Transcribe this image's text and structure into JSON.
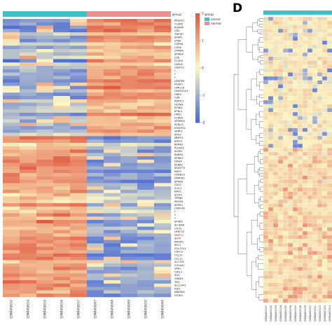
{
  "panel_label": "D",
  "chart_data": [
    {
      "type": "heatmap",
      "title": "",
      "annotation_track": {
        "label": "group",
        "groups": [
          {
            "name": "cancer",
            "color": "#3fc1c9",
            "n": 5
          },
          {
            "name": "normal",
            "color": "#ec8f8f",
            "n": 5
          }
        ]
      },
      "columns": [
        "GSM4450012",
        "GSM4450014",
        "GSM4450015",
        "GSM4450016",
        "GSM4450017",
        "GSM4450007",
        "GSM4450008",
        "GSM4450009",
        "GSM4450010",
        "GSM4450006"
      ],
      "row_labels": [
        "PRSS55",
        "CLDN5",
        "RGMAP",
        "CD5",
        "TMEM7",
        "EPB41",
        "ETB4",
        "CAPN6",
        "CD36",
        "CMKR8",
        "SPINK4",
        "CFD",
        "FCGR3",
        "CAPLN",
        "CASP12",
        "*",
        "*",
        "*",
        "LRRTM4",
        "FIGAF1",
        "GPR116",
        "LINC00153",
        "GRK5",
        "CD6",
        "PDPTC1",
        "HCAR3",
        "EFNB2",
        "BTNL1",
        "ORD1",
        "FCRN3",
        "SERPIN1",
        "KCNJ12",
        "ESRLPS2",
        "SRRP1",
        "MYOC",
        "MMP11",
        "MTFP1",
        "BPIFB1",
        "POLRP2",
        "KLRK1",
        "RAB26",
        "SPINK7",
        "LEKE2",
        "KCNB1",
        "SIGNTT3",
        "MAP5",
        "HOXB13",
        "DMRTA2",
        "EPHN3",
        "CD22",
        "ICOL1",
        "EMX1",
        "SULT2",
        "TPRBK",
        "PROM1",
        "BPIFA1",
        "CADC4A",
        "*",
        "*",
        "*",
        "EPHB3",
        "SLC6A8",
        "CTCFL",
        "LRRC33",
        "MMP13",
        "SLP4",
        "PMAIP1",
        "SPC1",
        "COL11A1",
        "CDH11",
        "CCL20",
        "CCL11",
        "SLC7A5",
        "COL4A1",
        "SAA1",
        "CXCL1",
        "SIX1",
        "CRNE4",
        "TDO",
        "SLC13A3",
        "IGK2",
        "ANKRD1",
        "GSTA5"
      ],
      "highlight_row": "MMP13",
      "scale": {
        "min": -2,
        "max": 2,
        "ticks": [
          2,
          1,
          0,
          -1,
          -2
        ],
        "colors": [
          "#4a6bd6",
          "#fdf8c4",
          "#e05a41"
        ]
      },
      "values_summary": "Top ~half of rows higher in normal columns (red) and lower in cancer columns (blue); bottom ~half shows the opposite pattern."
    },
    {
      "type": "heatmap",
      "title": "",
      "annotation_track": {
        "color": "#3fc1c9"
      },
      "columns": [
        "GSM4450001",
        "GSM4450002",
        "GSM4450003",
        "GSM4450004",
        "GSM4450005",
        "GSM4450006",
        "GSM4450007",
        "GSM4450008",
        "GSM4450009",
        "GSM4450010",
        "GSM4450011",
        "GSM4450012",
        "GSM4450013",
        "GSM4450014"
      ],
      "values_summary": "Rows clustered by dendrogram; upper block mostly pale yellow with scattered blue cells, lower block mostly light red."
    }
  ]
}
